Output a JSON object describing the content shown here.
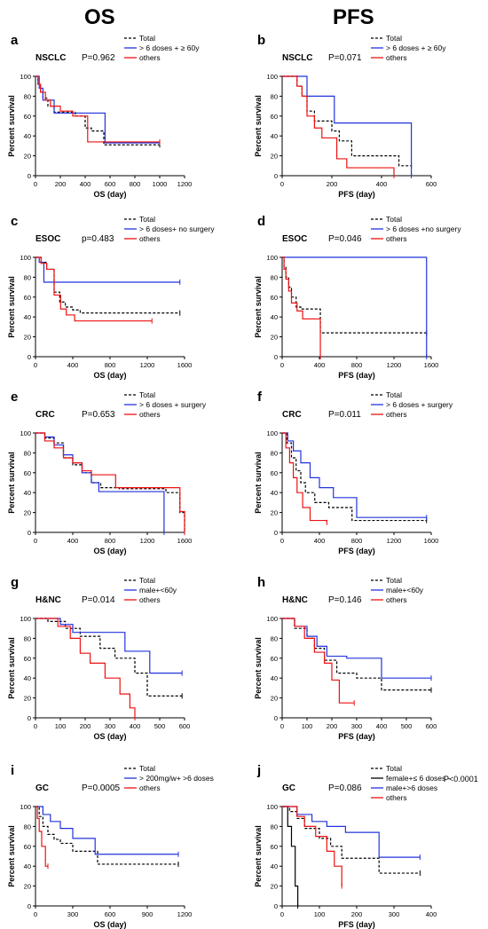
{
  "headers": [
    "OS",
    "PFS"
  ],
  "panels": [
    {
      "letter": "a",
      "cancer": "NSCLC",
      "pvalue": "P=0.962",
      "xlabel": "OS (day)",
      "xticks": [
        0,
        200,
        400,
        600,
        800,
        1000,
        1200
      ],
      "legend": [
        "Total",
        "> 6 doses + ≥ 60y",
        "others"
      ]
    },
    {
      "letter": "b",
      "cancer": "NSCLC",
      "pvalue": "P=0.071",
      "xlabel": "PFS (day)",
      "xticks": [
        0,
        200,
        400,
        600
      ],
      "legend": [
        "Total",
        "> 6 doses + ≥ 60y",
        "others"
      ]
    },
    {
      "letter": "c",
      "cancer": "ESOC",
      "pvalue": "p=0.483",
      "xlabel": "OS (day)",
      "xticks": [
        0,
        400,
        800,
        1200,
        1600
      ],
      "legend": [
        "Total",
        "> 6 doses+ no surgery",
        "others"
      ]
    },
    {
      "letter": "d",
      "cancer": "ESOC",
      "pvalue": "P=0.046",
      "xlabel": "PFS (day)",
      "xticks": [
        0,
        400,
        800,
        1200,
        1600
      ],
      "legend": [
        "Total",
        "> 6 doses +no surgery",
        "others"
      ]
    },
    {
      "letter": "e",
      "cancer": "CRC",
      "pvalue": "P=0.653",
      "xlabel": "OS (day)",
      "xticks": [
        0,
        400,
        800,
        1200,
        1600
      ],
      "legend": [
        "Total",
        "> 6 doses + surgery",
        "others"
      ]
    },
    {
      "letter": "f",
      "cancer": "CRC",
      "pvalue": "P=0.011",
      "xlabel": "PFS (day)",
      "xticks": [
        0,
        400,
        800,
        1200,
        1600
      ],
      "legend": [
        "Total",
        "> 6 doses + surgery",
        "others"
      ]
    },
    {
      "letter": "g",
      "cancer": "H&NC",
      "pvalue": "P=0.014",
      "xlabel": "OS (day)",
      "xticks": [
        0,
        100,
        200,
        300,
        400,
        500,
        600
      ],
      "legend": [
        "Total",
        "male+<60y",
        "others"
      ]
    },
    {
      "letter": "h",
      "cancer": "H&NC",
      "pvalue": "P=0.146",
      "xlabel": "PFS (day)",
      "xticks": [
        0,
        100,
        200,
        300,
        400,
        500,
        600
      ],
      "legend": [
        "Total",
        "male+<60y",
        "others"
      ]
    },
    {
      "letter": "i",
      "cancer": "GC",
      "pvalue": "P=0.0005",
      "xlabel": "OS (day)",
      "xticks": [
        0,
        300,
        600,
        900,
        1200
      ],
      "legend": [
        "Total",
        "> 200mg/w+ >6 doses",
        "others"
      ]
    },
    {
      "letter": "j",
      "cancer": "GC",
      "pvalue": "P=0.086",
      "pvalue2": "P<0.0001",
      "xlabel": "PFS (day)",
      "xticks": [
        0,
        100,
        200,
        300,
        400
      ],
      "legend": [
        "Total",
        "female+≤ 6 doses -",
        "male+>6 doses",
        "others"
      ]
    }
  ],
  "ylabel": "Percent survival",
  "yticks": [
    0,
    20,
    40,
    60,
    80,
    100
  ],
  "colors": {
    "total": "#000000",
    "group": "#2233dd",
    "others": "#ee1111",
    "extra": "#000000"
  },
  "chart_data": [
    {
      "type": "line",
      "panel": "a",
      "xlim": [
        0,
        1200
      ],
      "ylim": [
        0,
        100
      ],
      "series": [
        {
          "name": "Total",
          "x": [
            0,
            20,
            40,
            60,
            100,
            150,
            250,
            320,
            400,
            450,
            550,
            700,
            1000
          ],
          "y": [
            100,
            92,
            85,
            78,
            70,
            64,
            64,
            60,
            48,
            45,
            31,
            31,
            31
          ]
        },
        {
          "name": "> 6 doses + ≥ 60y",
          "x": [
            0,
            30,
            60,
            150,
            300,
            560,
            1000
          ],
          "y": [
            100,
            88,
            76,
            63,
            63,
            33,
            33
          ]
        },
        {
          "name": "others",
          "x": [
            0,
            20,
            40,
            80,
            120,
            200,
            300,
            420,
            560,
            1000
          ],
          "y": [
            100,
            92,
            84,
            76,
            70,
            65,
            60,
            34,
            34,
            34
          ]
        }
      ]
    },
    {
      "type": "line",
      "panel": "b",
      "xlim": [
        0,
        600
      ],
      "ylim": [
        0,
        100
      ],
      "series": [
        {
          "name": "Total",
          "x": [
            0,
            60,
            80,
            100,
            130,
            200,
            230,
            280,
            420,
            470,
            520
          ],
          "y": [
            100,
            90,
            80,
            65,
            55,
            45,
            35,
            20,
            20,
            10,
            10
          ]
        },
        {
          "name": "> 6 doses + ≥ 60y",
          "x": [
            0,
            100,
            210,
            520
          ],
          "y": [
            100,
            80,
            53,
            0
          ]
        },
        {
          "name": "others",
          "x": [
            0,
            60,
            80,
            100,
            130,
            160,
            220,
            260,
            450
          ],
          "y": [
            100,
            90,
            80,
            60,
            48,
            38,
            17,
            8,
            0
          ]
        }
      ]
    },
    {
      "type": "line",
      "panel": "c",
      "xlim": [
        0,
        1600
      ],
      "ylim": [
        0,
        100
      ],
      "series": [
        {
          "name": "Total",
          "x": [
            0,
            60,
            120,
            200,
            260,
            320,
            400,
            480,
            1550
          ],
          "y": [
            100,
            95,
            88,
            65,
            55,
            50,
            47,
            44,
            44
          ]
        },
        {
          "name": "> 6 doses+ no surgery",
          "x": [
            0,
            40,
            90,
            1550
          ],
          "y": [
            100,
            95,
            75,
            75
          ]
        },
        {
          "name": "others",
          "x": [
            0,
            60,
            120,
            200,
            270,
            330,
            420,
            1250
          ],
          "y": [
            100,
            94,
            88,
            62,
            48,
            42,
            36,
            36
          ]
        }
      ]
    },
    {
      "type": "line",
      "panel": "d",
      "xlim": [
        0,
        1600
      ],
      "ylim": [
        0,
        100
      ],
      "series": [
        {
          "name": "Total",
          "x": [
            0,
            20,
            40,
            70,
            100,
            150,
            200,
            410,
            1550
          ],
          "y": [
            100,
            90,
            80,
            70,
            60,
            50,
            48,
            24,
            24
          ]
        },
        {
          "name": "> 6 doses +no surgery",
          "x": [
            0,
            1550
          ],
          "y": [
            100,
            0
          ]
        },
        {
          "name": "others",
          "x": [
            0,
            20,
            40,
            70,
            100,
            160,
            220,
            410
          ],
          "y": [
            100,
            88,
            78,
            66,
            54,
            46,
            38,
            0
          ]
        }
      ]
    },
    {
      "type": "line",
      "panel": "e",
      "xlim": [
        0,
        1600
      ],
      "ylim": [
        0,
        100
      ],
      "series": [
        {
          "name": "Total",
          "x": [
            0,
            100,
            200,
            300,
            400,
            500,
            600,
            700,
            900,
            1400,
            1550,
            1600
          ],
          "y": [
            100,
            95,
            90,
            75,
            68,
            60,
            50,
            45,
            44,
            40,
            20,
            0
          ]
        },
        {
          "name": "> 6 doses + surgery",
          "x": [
            0,
            100,
            200,
            300,
            400,
            500,
            600,
            680,
            1380
          ],
          "y": [
            100,
            96,
            88,
            78,
            70,
            60,
            50,
            41,
            0
          ]
        },
        {
          "name": "others",
          "x": [
            0,
            100,
            200,
            300,
            400,
            500,
            600,
            700,
            860,
            1550,
            1600
          ],
          "y": [
            100,
            92,
            85,
            75,
            70,
            62,
            58,
            58,
            45,
            21,
            0
          ]
        }
      ]
    },
    {
      "type": "line",
      "panel": "f",
      "xlim": [
        0,
        1600
      ],
      "ylim": [
        0,
        100
      ],
      "series": [
        {
          "name": "Total",
          "x": [
            0,
            50,
            100,
            150,
            200,
            250,
            350,
            500,
            750,
            1550
          ],
          "y": [
            100,
            90,
            75,
            62,
            50,
            40,
            30,
            25,
            12,
            12
          ]
        },
        {
          "name": "> 6 doses + surgery",
          "x": [
            0,
            60,
            120,
            200,
            300,
            400,
            550,
            800,
            1550
          ],
          "y": [
            100,
            92,
            82,
            70,
            55,
            45,
            35,
            15,
            15
          ]
        },
        {
          "name": "others",
          "x": [
            0,
            40,
            80,
            120,
            160,
            220,
            300,
            480
          ],
          "y": [
            100,
            85,
            70,
            55,
            40,
            25,
            12,
            10
          ]
        }
      ]
    },
    {
      "type": "line",
      "panel": "g",
      "xlim": [
        0,
        600
      ],
      "ylim": [
        0,
        100
      ],
      "series": [
        {
          "name": "Total",
          "x": [
            0,
            50,
            120,
            180,
            260,
            320,
            400,
            450,
            590
          ],
          "y": [
            100,
            97,
            90,
            82,
            70,
            60,
            45,
            22,
            22
          ]
        },
        {
          "name": "male+<60y",
          "x": [
            0,
            100,
            150,
            360,
            460,
            590
          ],
          "y": [
            100,
            94,
            86,
            67,
            45,
            45
          ]
        },
        {
          "name": "others",
          "x": [
            0,
            90,
            140,
            180,
            220,
            280,
            340,
            380,
            400
          ],
          "y": [
            100,
            92,
            80,
            65,
            55,
            40,
            24,
            10,
            0
          ]
        }
      ]
    },
    {
      "type": "line",
      "panel": "h",
      "xlim": [
        0,
        600
      ],
      "ylim": [
        0,
        100
      ],
      "series": [
        {
          "name": "Total",
          "x": [
            0,
            50,
            100,
            130,
            170,
            220,
            300,
            400,
            600
          ],
          "y": [
            100,
            90,
            80,
            70,
            58,
            45,
            40,
            28,
            28
          ]
        },
        {
          "name": "male+<60y",
          "x": [
            0,
            50,
            100,
            140,
            180,
            260,
            400,
            600
          ],
          "y": [
            100,
            92,
            82,
            72,
            62,
            60,
            40,
            40
          ]
        },
        {
          "name": "others",
          "x": [
            0,
            50,
            90,
            130,
            170,
            200,
            230,
            290
          ],
          "y": [
            100,
            92,
            80,
            66,
            55,
            38,
            15,
            15
          ]
        }
      ]
    },
    {
      "type": "line",
      "panel": "i",
      "xlim": [
        0,
        1200
      ],
      "ylim": [
        0,
        100
      ],
      "series": [
        {
          "name": "Total",
          "x": [
            0,
            30,
            60,
            100,
            150,
            200,
            300,
            500,
            1150
          ],
          "y": [
            100,
            90,
            80,
            72,
            67,
            63,
            55,
            42,
            42
          ]
        },
        {
          "name": "> 200mg/w+ >6 doses",
          "x": [
            0,
            60,
            120,
            200,
            300,
            480,
            1150
          ],
          "y": [
            100,
            92,
            85,
            78,
            68,
            52,
            52
          ]
        },
        {
          "name": "others",
          "x": [
            0,
            15,
            30,
            50,
            80,
            100
          ],
          "y": [
            100,
            88,
            75,
            60,
            40,
            40
          ]
        }
      ]
    },
    {
      "type": "line",
      "panel": "j",
      "xlim": [
        0,
        400
      ],
      "ylim": [
        0,
        100
      ],
      "series": [
        {
          "name": "Total",
          "x": [
            0,
            20,
            40,
            60,
            100,
            130,
            160,
            260,
            370
          ],
          "y": [
            100,
            95,
            88,
            78,
            68,
            60,
            48,
            33,
            33
          ]
        },
        {
          "name": "female+≤ 6 doses -",
          "x": [
            0,
            15,
            25,
            35,
            42
          ],
          "y": [
            100,
            80,
            60,
            20,
            0
          ]
        },
        {
          "name": "male+>6 doses",
          "x": [
            0,
            40,
            80,
            120,
            170,
            260,
            370
          ],
          "y": [
            100,
            92,
            85,
            80,
            74,
            49,
            49
          ]
        },
        {
          "name": "others",
          "x": [
            0,
            40,
            60,
            90,
            120,
            140,
            160
          ],
          "y": [
            100,
            90,
            80,
            70,
            55,
            40,
            20
          ]
        }
      ]
    }
  ]
}
